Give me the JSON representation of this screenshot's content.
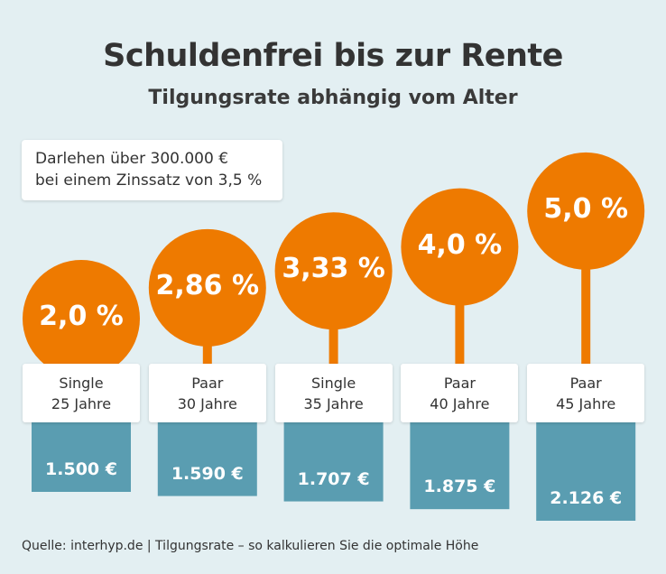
{
  "header": {
    "title": "Schuldenfrei bis zur Rente",
    "subtitle": "Tilgungsrate abhängig vom Alter"
  },
  "note": {
    "line1": "Darlehen über 300.000 €",
    "line2": "bei einem Zinssatz von 3,5 %"
  },
  "chart_data": {
    "type": "lollipop+bar",
    "categories": [
      {
        "line1": "Single",
        "line2": "25 Jahre"
      },
      {
        "line1": "Paar",
        "line2": "30 Jahre"
      },
      {
        "line1": "Single",
        "line2": "35 Jahre"
      },
      {
        "line1": "Paar",
        "line2": "40 Jahre"
      },
      {
        "line1": "Paar",
        "line2": "45 Jahre"
      }
    ],
    "series": [
      {
        "values": [
          2.0,
          2.86,
          3.33,
          4.0,
          5.0
        ],
        "labels": [
          "2,0 %",
          "2,86 %",
          "3,33 %",
          "4,0 %",
          "5,0 %"
        ],
        "unit": "%"
      },
      {
        "values": [
          1500,
          1590,
          1707,
          1875,
          2126
        ],
        "labels": [
          "1.500 €",
          "1.590 €",
          "1.707 €",
          "1.875 €",
          "2.126 €"
        ],
        "unit": "€"
      }
    ],
    "colors": {
      "circle": "#ee7a00",
      "bar": "#5a9db1",
      "background": "#e3eff2"
    }
  },
  "footer": {
    "source": "Quelle: interhyp.de | Tilgungsrate – so kalkulieren Sie die optimale Höhe"
  }
}
